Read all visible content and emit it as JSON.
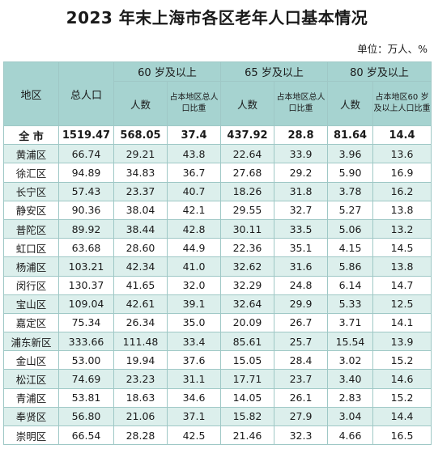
{
  "title": "2023 年末上海市各区老年人口基本情况",
  "unit": "单位：万人、%",
  "headers": {
    "district": "地区",
    "total_pop": "总人口",
    "group60": "60 岁及以上",
    "group65": "65 岁及以上",
    "group80": "80 岁及以上",
    "count": "人数",
    "ratio": "占本地区总人口比重",
    "ratio80": "占本地区60 岁及以上人口比重"
  },
  "total": {
    "name": "全 市",
    "pop": "1519.47",
    "a60": "568.05",
    "r60": "37.4",
    "a65": "437.92",
    "r65": "28.8",
    "a80": "81.64",
    "r80": "14.4"
  },
  "rows": [
    {
      "name": "黄浦区",
      "pop": "66.74",
      "a60": "29.21",
      "r60": "43.8",
      "a65": "22.64",
      "r65": "33.9",
      "a80": "3.96",
      "r80": "13.6"
    },
    {
      "name": "徐汇区",
      "pop": "94.89",
      "a60": "34.83",
      "r60": "36.7",
      "a65": "27.68",
      "r65": "29.2",
      "a80": "5.90",
      "r80": "16.9"
    },
    {
      "name": "长宁区",
      "pop": "57.43",
      "a60": "23.37",
      "r60": "40.7",
      "a65": "18.26",
      "r65": "31.8",
      "a80": "3.78",
      "r80": "16.2"
    },
    {
      "name": "静安区",
      "pop": "90.36",
      "a60": "38.04",
      "r60": "42.1",
      "a65": "29.55",
      "r65": "32.7",
      "a80": "5.27",
      "r80": "13.8"
    },
    {
      "name": "普陀区",
      "pop": "89.92",
      "a60": "38.44",
      "r60": "42.8",
      "a65": "30.11",
      "r65": "33.5",
      "a80": "5.06",
      "r80": "13.2"
    },
    {
      "name": "虹口区",
      "pop": "63.68",
      "a60": "28.60",
      "r60": "44.9",
      "a65": "22.36",
      "r65": "35.1",
      "a80": "4.15",
      "r80": "14.5"
    },
    {
      "name": "杨浦区",
      "pop": "103.21",
      "a60": "42.34",
      "r60": "41.0",
      "a65": "32.62",
      "r65": "31.6",
      "a80": "5.86",
      "r80": "13.8"
    },
    {
      "name": "闵行区",
      "pop": "130.37",
      "a60": "41.65",
      "r60": "32.0",
      "a65": "32.29",
      "r65": "24.8",
      "a80": "6.14",
      "r80": "14.7"
    },
    {
      "name": "宝山区",
      "pop": "109.04",
      "a60": "42.61",
      "r60": "39.1",
      "a65": "32.64",
      "r65": "29.9",
      "a80": "5.33",
      "r80": "12.5"
    },
    {
      "name": "嘉定区",
      "pop": "75.34",
      "a60": "26.34",
      "r60": "35.0",
      "a65": "20.09",
      "r65": "26.7",
      "a80": "3.71",
      "r80": "14.1"
    },
    {
      "name": "浦东新区",
      "pop": "333.66",
      "a60": "111.48",
      "r60": "33.4",
      "a65": "85.61",
      "r65": "25.7",
      "a80": "15.54",
      "r80": "13.9"
    },
    {
      "name": "金山区",
      "pop": "53.00",
      "a60": "19.94",
      "r60": "37.6",
      "a65": "15.05",
      "r65": "28.4",
      "a80": "3.02",
      "r80": "15.2"
    },
    {
      "name": "松江区",
      "pop": "74.69",
      "a60": "23.23",
      "r60": "31.1",
      "a65": "17.71",
      "r65": "23.7",
      "a80": "3.40",
      "r80": "14.6"
    },
    {
      "name": "青浦区",
      "pop": "53.81",
      "a60": "18.63",
      "r60": "34.6",
      "a65": "14.05",
      "r65": "26.1",
      "a80": "2.83",
      "r80": "15.2"
    },
    {
      "name": "奉贤区",
      "pop": "56.80",
      "a60": "21.06",
      "r60": "37.1",
      "a65": "15.82",
      "r65": "27.9",
      "a80": "3.04",
      "r80": "14.4"
    },
    {
      "name": "崇明区",
      "pop": "66.54",
      "a60": "28.28",
      "r60": "42.5",
      "a65": "21.46",
      "r65": "32.3",
      "a80": "4.66",
      "r80": "16.5"
    }
  ]
}
